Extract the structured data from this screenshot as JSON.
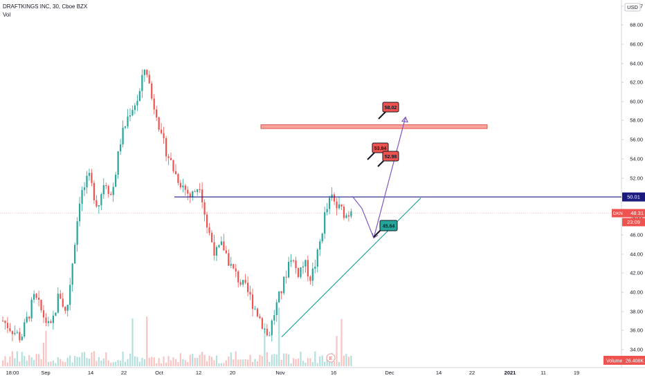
{
  "header": {
    "symbol_line": "DRAFTKINGS INC, 30, Cboe BZX",
    "volume_indicator": "Vol"
  },
  "chart_data": {
    "type": "candlestick",
    "currency": "USD",
    "x_tick_labels": [
      "18:00",
      "Sep",
      "14",
      "22",
      "Oct",
      "12",
      "20",
      "Nov",
      "16",
      "Dec",
      "14",
      "22",
      "2021",
      "11",
      "19"
    ],
    "y_tick_labels": [
      "34.00",
      "36.00",
      "38.00",
      "40.00",
      "42.00",
      "44.00",
      "46.00",
      "48.00",
      "52.00",
      "54.00",
      "56.00",
      "58.00",
      "60.00",
      "62.00",
      "64.00",
      "66.00",
      "68.00",
      "7"
    ],
    "ylim": [
      33,
      70
    ],
    "price_path": [
      [
        0,
        37
      ],
      [
        4,
        35.2
      ],
      [
        7,
        39.5
      ],
      [
        8.5,
        38
      ],
      [
        10.5,
        36
      ],
      [
        12.5,
        40
      ],
      [
        14,
        37.5
      ],
      [
        17,
        50
      ],
      [
        19,
        52
      ],
      [
        21,
        49
      ],
      [
        22.5,
        52
      ],
      [
        24,
        50
      ],
      [
        26,
        56
      ],
      [
        28,
        59
      ],
      [
        30,
        60.5
      ],
      [
        31.5,
        64
      ],
      [
        33,
        60
      ],
      [
        34,
        59
      ],
      [
        35,
        56
      ],
      [
        36,
        55
      ],
      [
        38,
        52.5
      ],
      [
        40,
        51
      ],
      [
        41.5,
        50
      ],
      [
        43.5,
        51.5
      ],
      [
        45,
        47
      ],
      [
        47,
        44
      ],
      [
        48.5,
        45
      ],
      [
        50.5,
        42.5
      ],
      [
        52.5,
        41
      ],
      [
        54,
        40
      ],
      [
        55.5,
        38.5
      ],
      [
        57.5,
        36.5
      ],
      [
        58.5,
        35.2
      ],
      [
        60,
        38
      ],
      [
        62,
        41
      ],
      [
        63.5,
        44
      ],
      [
        65,
        42
      ],
      [
        66.5,
        43
      ],
      [
        68,
        41.5
      ],
      [
        69.5,
        44
      ],
      [
        71,
        48
      ],
      [
        72.5,
        50
      ],
      [
        73.5,
        49
      ],
      [
        75,
        48.5
      ],
      [
        76,
        48
      ],
      [
        77,
        49
      ]
    ],
    "current_price": "48.31",
    "countdown": "23:09",
    "price_marker_label": "DKN",
    "horizontal_level": "50.01",
    "resistance_zone": [
      57.2,
      57.6
    ],
    "price_labels": [
      "58.02",
      "53.84",
      "52.98",
      "45.64"
    ],
    "volume_label": "Volume",
    "volume_value": "26.408K",
    "earnings_marker": "E",
    "colors": {
      "up": "#26a69a",
      "down": "#ef5350",
      "level_line": "#1a1a7e",
      "zone_fill": "#f7a39e",
      "zone_border": "#e0554c",
      "arrow": "#7e57c2",
      "trendline": "#26a69a",
      "badge_red": "#ef5350",
      "badge_green": "#26a69a"
    }
  }
}
